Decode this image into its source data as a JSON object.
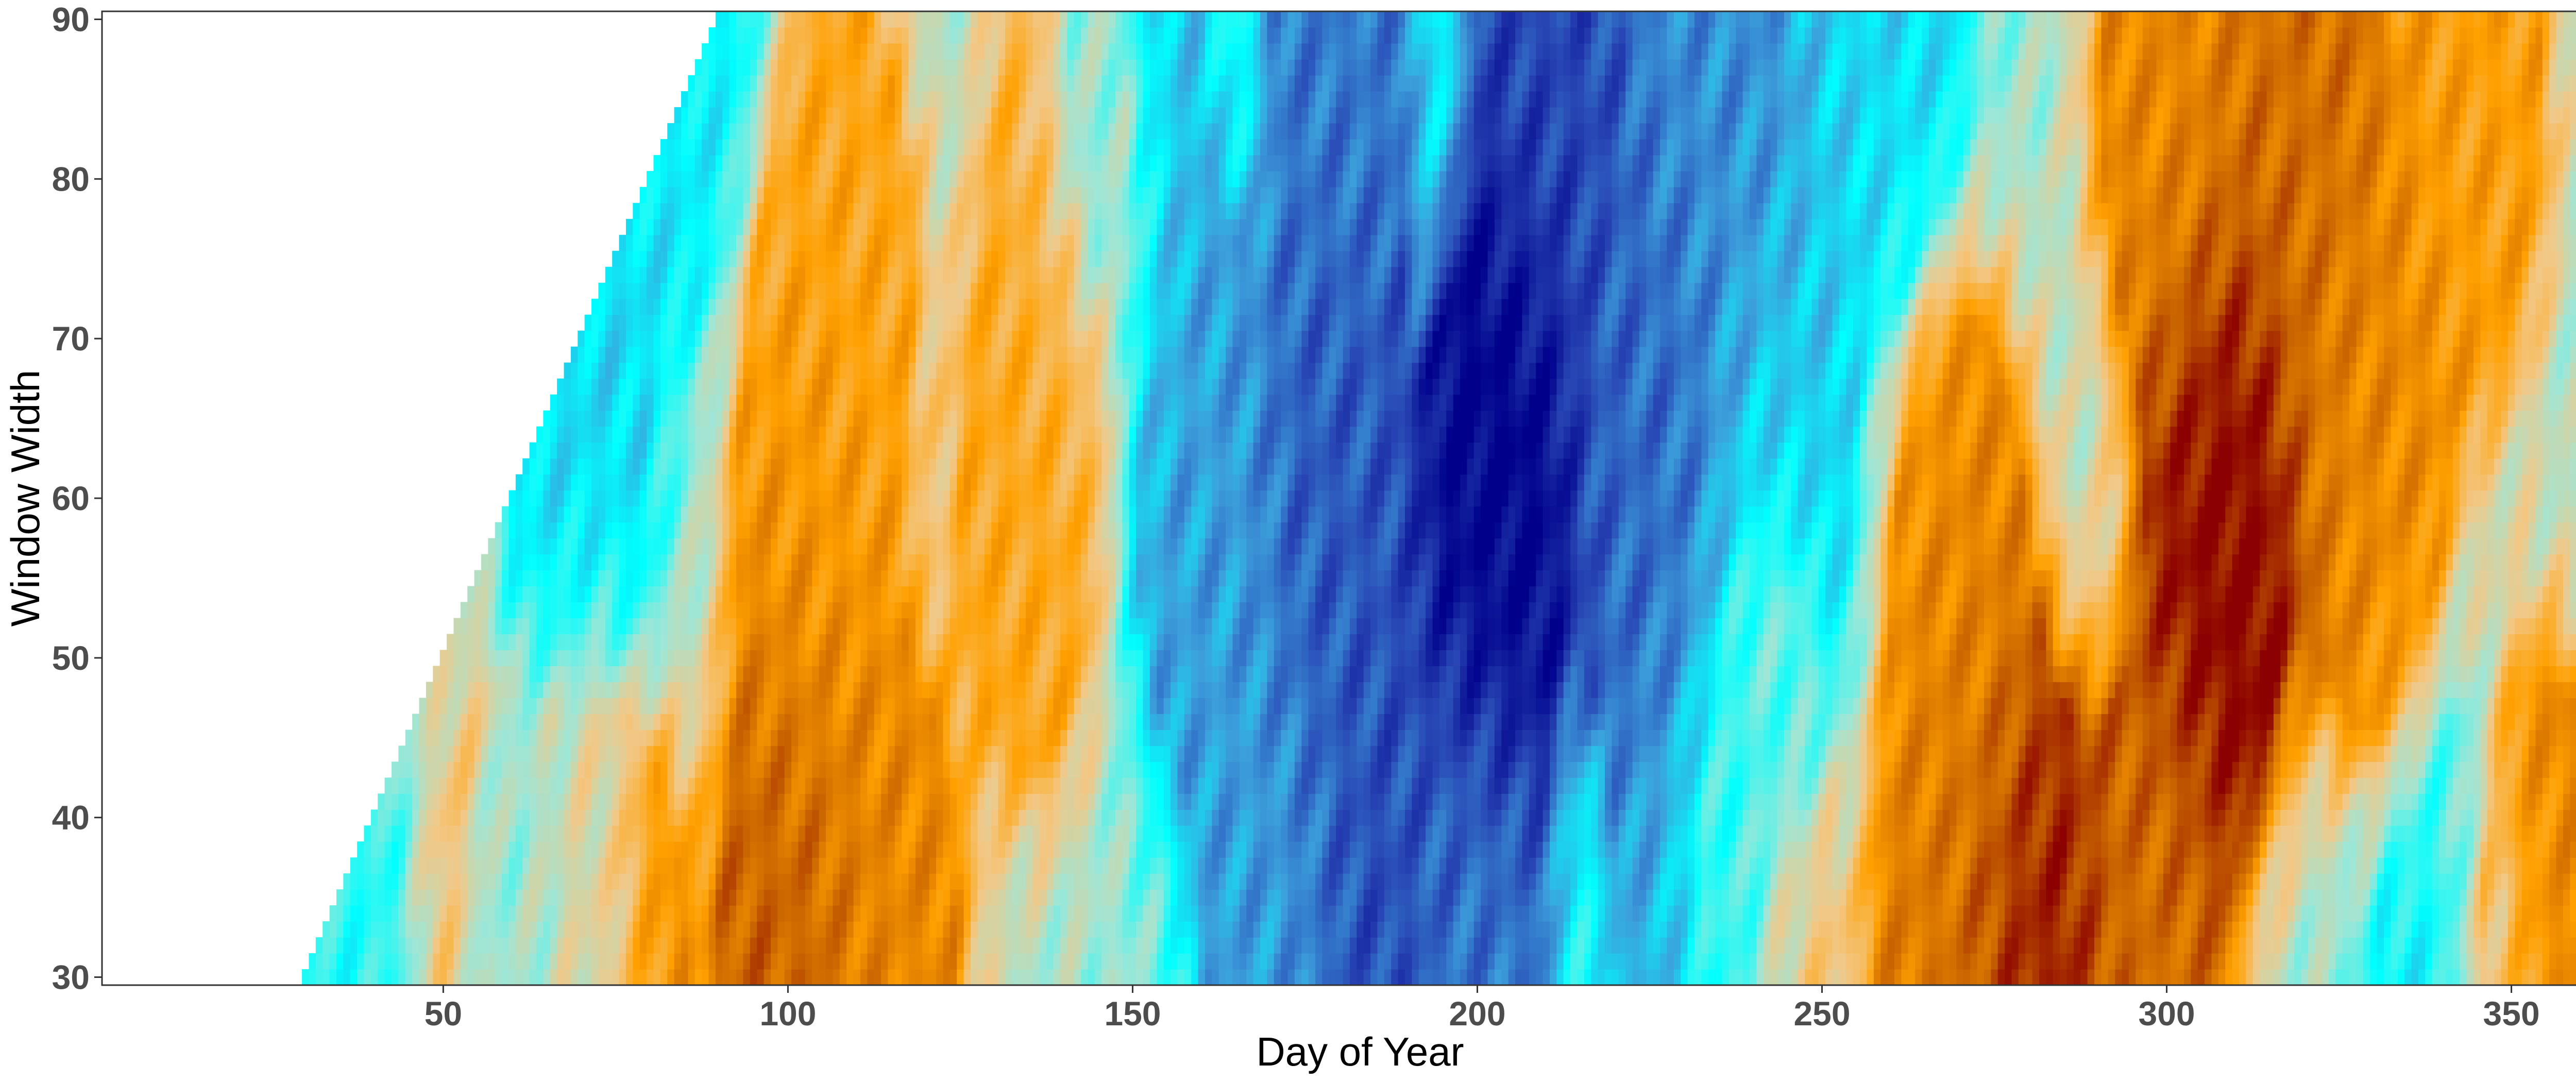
{
  "chart_data": {
    "type": "heatmap",
    "title": "",
    "xlabel": "Day of Year",
    "ylabel": "Window Width",
    "xlim": [
      1,
      365
    ],
    "ylim": [
      30,
      90
    ],
    "x_ticks": [
      50,
      100,
      150,
      200,
      250,
      300,
      350
    ],
    "y_ticks": [
      30,
      40,
      50,
      60,
      70,
      80,
      90
    ],
    "missing_region": "no data for day < window width (upper-left white wedge)",
    "color_scale": {
      "type": "diverging",
      "colors": [
        "#00008b",
        "#2846b4",
        "#3ca0dc",
        "#00ffff",
        "#9fe6d6",
        "#f2c887",
        "#ffa000",
        "#c86400",
        "#8b0000"
      ],
      "low_meaning": "dark blue",
      "high_meaning": "dark red"
    },
    "cold_anchors": [
      {
        "day": 35,
        "width": 30,
        "strength": 0.2
      },
      {
        "day": 65,
        "width": 30,
        "strength": 0.35
      },
      {
        "day": 170,
        "width": 30,
        "strength": 0.5
      },
      {
        "day": 185,
        "width": 30,
        "strength": 0.75
      },
      {
        "day": 200,
        "width": 30,
        "strength": 0.6
      },
      {
        "day": 230,
        "width": 30,
        "strength": 0.45
      },
      {
        "day": 340,
        "width": 30,
        "strength": 0.3
      },
      {
        "day": 70,
        "width": 60,
        "strength": 0.35
      },
      {
        "day": 160,
        "width": 60,
        "strength": 0.5
      },
      {
        "day": 180,
        "width": 60,
        "strength": 0.7
      },
      {
        "day": 203,
        "width": 60,
        "strength": 1.0
      },
      {
        "day": 225,
        "width": 60,
        "strength": 0.65
      },
      {
        "day": 245,
        "width": 60,
        "strength": 0.4
      },
      {
        "day": 85,
        "width": 90,
        "strength": 0.3
      },
      {
        "day": 150,
        "width": 90,
        "strength": 0.4
      },
      {
        "day": 180,
        "width": 90,
        "strength": 0.6
      },
      {
        "day": 210,
        "width": 90,
        "strength": 0.75
      },
      {
        "day": 235,
        "width": 90,
        "strength": 0.55
      },
      {
        "day": 260,
        "width": 90,
        "strength": 0.35
      }
    ],
    "warm_anchors": [
      {
        "day": 58,
        "width": 32,
        "strength": 0.35
      },
      {
        "day": 75,
        "width": 30,
        "strength": 0.55
      },
      {
        "day": 100,
        "width": 32,
        "strength": 0.75
      },
      {
        "day": 115,
        "width": 32,
        "strength": 0.6
      },
      {
        "day": 242,
        "width": 38,
        "strength": 0.3
      },
      {
        "day": 268,
        "width": 30,
        "strength": 0.65
      },
      {
        "day": 280,
        "width": 30,
        "strength": 0.95
      },
      {
        "day": 298,
        "width": 32,
        "strength": 0.7
      },
      {
        "day": 355,
        "width": 32,
        "strength": 0.6
      },
      {
        "day": 103,
        "width": 60,
        "strength": 0.55
      },
      {
        "day": 135,
        "width": 60,
        "strength": 0.45
      },
      {
        "day": 270,
        "width": 55,
        "strength": 0.6
      },
      {
        "day": 308,
        "width": 58,
        "strength": 1.0
      },
      {
        "day": 330,
        "width": 62,
        "strength": 0.6
      },
      {
        "day": 108,
        "width": 75,
        "strength": 0.45
      },
      {
        "day": 140,
        "width": 80,
        "strength": 0.4
      },
      {
        "day": 300,
        "width": 85,
        "strength": 0.6
      },
      {
        "day": 320,
        "width": 85,
        "strength": 0.7
      },
      {
        "day": 345,
        "width": 85,
        "strength": 0.5
      }
    ]
  }
}
